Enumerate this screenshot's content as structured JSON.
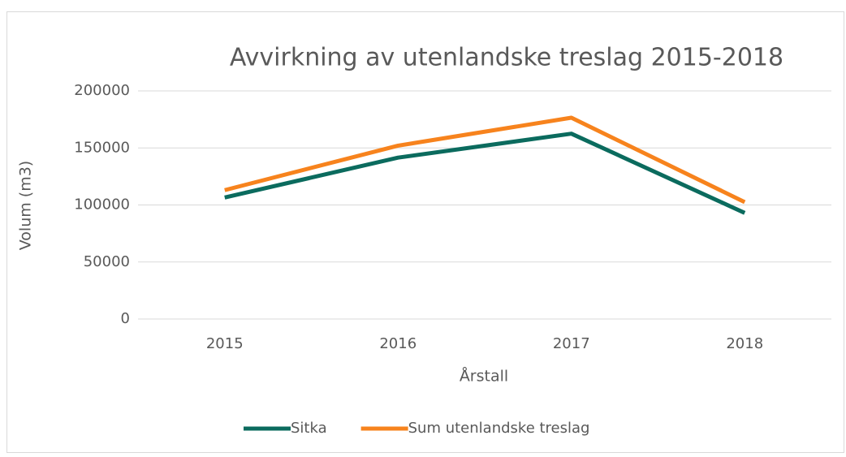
{
  "chart_data": {
    "type": "line",
    "title": "Avvirkning av utenlandske treslag 2015-2018",
    "y_label": "Volum (m3)",
    "x_label": "Årstall",
    "categories": [
      "2015",
      "2016",
      "2017",
      "2018"
    ],
    "series": [
      {
        "name": "Sitka",
        "color": "#0b6b5e",
        "values": [
          106500,
          141500,
          162500,
          93000
        ]
      },
      {
        "name": "Sum utenlandske treslag",
        "color": "#f7831d",
        "values": [
          113000,
          152000,
          176500,
          102500
        ]
      }
    ],
    "ylim": [
      0,
      200000
    ],
    "yticks": [
      0,
      50000,
      100000,
      150000,
      200000
    ],
    "grid": true,
    "legend": "bottom"
  }
}
